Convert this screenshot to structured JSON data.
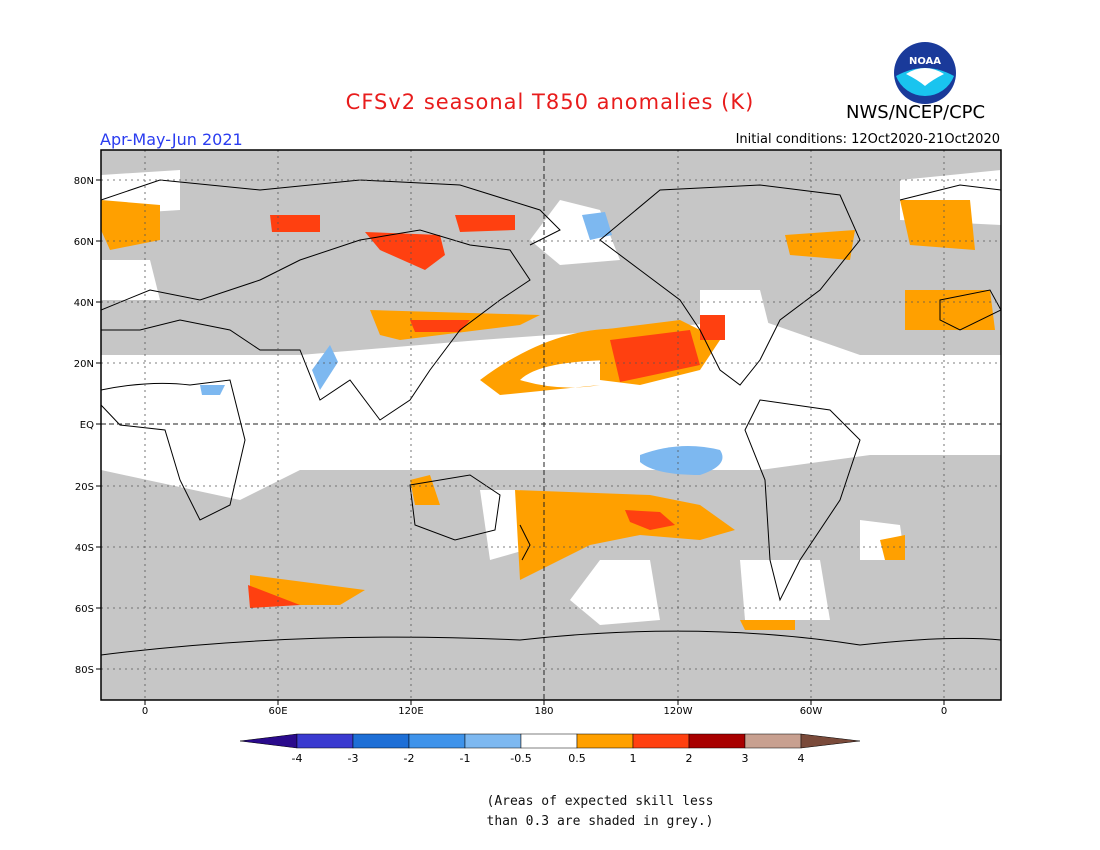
{
  "header": {
    "title": "CFSv2 seasonal T850 anomalies (K)",
    "season": "Apr-May-Jun 2021",
    "initial_conditions": "Initial conditions: 12Oct2020-21Oct2020",
    "agency": "NWS/NCEP/CPC",
    "logo_text": "NOAA"
  },
  "map": {
    "lat_ticks": [
      "80N",
      "60N",
      "40N",
      "20N",
      "EQ",
      "20S",
      "40S",
      "60S",
      "80S"
    ],
    "lon_ticks": [
      "0",
      "60E",
      "120E",
      "180",
      "120W",
      "60W",
      "0"
    ]
  },
  "legend": {
    "labels": [
      "-4",
      "-3",
      "-2",
      "-1",
      "-0.5",
      "0.5",
      "1",
      "2",
      "3",
      "4"
    ],
    "colors": [
      "#2a0a8c",
      "#3a3ad0",
      "#1e6fd6",
      "#3f93ea",
      "#7db8f0",
      "#ffffff",
      "#ffa000",
      "#ff4010",
      "#a80000",
      "#c8a090",
      "#7a4a3a"
    ]
  },
  "footnote": {
    "line1": "(Areas of expected skill less",
    "line2": "than 0.3 are shaded in grey.)"
  }
}
